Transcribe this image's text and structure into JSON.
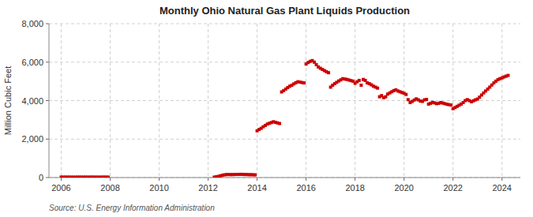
{
  "chart_data": {
    "type": "scatter",
    "title": "Monthly Ohio Natural Gas Plant Liquids Production",
    "y_label": "Million Cubic Feet",
    "annotations": [
      "Source: U.S. Energy Information Administration"
    ],
    "color": "#cc0000",
    "marker": "square",
    "grid": true,
    "xlim": [
      2005.5,
      2024.75
    ],
    "xticks": [
      2006,
      2008,
      2010,
      2012,
      2014,
      2016,
      2018,
      2020,
      2022,
      2024
    ],
    "ylim": [
      0,
      8000
    ],
    "yticks": [
      0,
      {
        "value": 2000,
        "label": "2,000"
      },
      {
        "value": 4000,
        "label": "4,000"
      },
      {
        "value": 6000,
        "label": "6,000"
      },
      {
        "value": 8000,
        "label": "8,000"
      }
    ],
    "x": [
      2006.0,
      2006.083,
      2006.167,
      2006.25,
      2006.333,
      2006.417,
      2006.5,
      2006.583,
      2006.667,
      2006.75,
      2006.833,
      2006.917,
      2007.0,
      2007.083,
      2007.167,
      2007.25,
      2007.333,
      2007.417,
      2007.5,
      2007.583,
      2007.667,
      2007.75,
      2007.833,
      2007.917,
      2012.25,
      2012.333,
      2012.417,
      2012.5,
      2012.583,
      2012.667,
      2012.75,
      2012.833,
      2012.917,
      2013.0,
      2013.083,
      2013.167,
      2013.25,
      2013.333,
      2013.417,
      2013.5,
      2013.583,
      2013.667,
      2013.75,
      2013.833,
      2013.917,
      2014.0,
      2014.083,
      2014.167,
      2014.25,
      2014.333,
      2014.417,
      2014.5,
      2014.583,
      2014.667,
      2014.75,
      2014.833,
      2014.917,
      2015.0,
      2015.083,
      2015.167,
      2015.25,
      2015.333,
      2015.417,
      2015.5,
      2015.583,
      2015.667,
      2015.75,
      2015.833,
      2015.917,
      2016.0,
      2016.083,
      2016.167,
      2016.25,
      2016.333,
      2016.417,
      2016.5,
      2016.583,
      2016.667,
      2016.75,
      2016.833,
      2016.917,
      2017.0,
      2017.083,
      2017.167,
      2017.25,
      2017.333,
      2017.417,
      2017.5,
      2017.583,
      2017.667,
      2017.75,
      2017.833,
      2017.917,
      2018.0,
      2018.083,
      2018.167,
      2018.25,
      2018.333,
      2018.417,
      2018.5,
      2018.583,
      2018.667,
      2018.75,
      2018.833,
      2018.917,
      2019.0,
      2019.083,
      2019.167,
      2019.25,
      2019.333,
      2019.417,
      2019.5,
      2019.583,
      2019.667,
      2019.75,
      2019.833,
      2019.917,
      2020.0,
      2020.083,
      2020.167,
      2020.25,
      2020.333,
      2020.417,
      2020.5,
      2020.583,
      2020.667,
      2020.75,
      2020.833,
      2020.917,
      2021.0,
      2021.083,
      2021.167,
      2021.25,
      2021.333,
      2021.417,
      2021.5,
      2021.583,
      2021.667,
      2021.75,
      2021.833,
      2021.917,
      2022.0,
      2022.083,
      2022.167,
      2022.25,
      2022.333,
      2022.417,
      2022.5,
      2022.583,
      2022.667,
      2022.75,
      2022.833,
      2022.917,
      2023.0,
      2023.083,
      2023.167,
      2023.25,
      2023.333,
      2023.417,
      2023.5,
      2023.583,
      2023.667,
      2023.75,
      2023.833,
      2023.917,
      2024.0,
      2024.083,
      2024.167,
      2024.25
    ],
    "values": [
      25,
      22,
      24,
      21,
      23,
      22,
      20,
      21,
      23,
      24,
      22,
      21,
      23,
      22,
      21,
      24,
      23,
      22,
      21,
      20,
      22,
      24,
      23,
      22,
      22,
      40,
      60,
      90,
      120,
      140,
      155,
      158,
      152,
      155,
      158,
      162,
      165,
      168,
      162,
      158,
      155,
      151,
      148,
      145,
      140,
      2430,
      2500,
      2560,
      2640,
      2710,
      2780,
      2820,
      2860,
      2900,
      2870,
      2840,
      2810,
      4450,
      4520,
      4600,
      4680,
      4750,
      4800,
      4870,
      4930,
      4980,
      4960,
      4940,
      4920,
      5900,
      5980,
      6040,
      6080,
      6000,
      5870,
      5750,
      5680,
      5620,
      5560,
      5500,
      5450,
      4700,
      4800,
      4880,
      4950,
      5020,
      5080,
      5140,
      5120,
      5100,
      5070,
      5040,
      5010,
      4900,
      4980,
      5050,
      4800,
      5100,
      5050,
      4920,
      4880,
      4820,
      4750,
      4700,
      4650,
      4200,
      4260,
      4150,
      4200,
      4340,
      4400,
      4460,
      4520,
      4560,
      4500,
      4460,
      4420,
      4380,
      4320,
      4050,
      3900,
      3960,
      4030,
      4090,
      4040,
      3980,
      3960,
      4040,
      4060,
      3820,
      3860,
      3910,
      3880,
      3840,
      3860,
      3900,
      3870,
      3840,
      3810,
      3790,
      3770,
      3580,
      3640,
      3700,
      3760,
      3820,
      3900,
      4000,
      4050,
      4000,
      3940,
      3990,
      4040,
      4080,
      4180,
      4290,
      4400,
      4500,
      4600,
      4700,
      4810,
      4920,
      5010,
      5090,
      5140,
      5180,
      5230,
      5270,
      5310
    ]
  }
}
